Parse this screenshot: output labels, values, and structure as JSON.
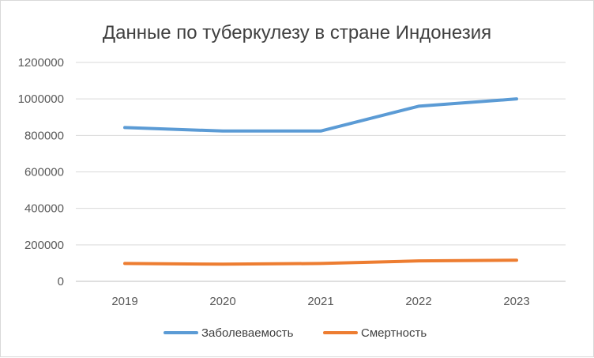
{
  "chart_data": {
    "type": "line",
    "title": "Данные по туберкулезу  в стране Индонезия",
    "xlabel": "",
    "ylabel": "",
    "categories": [
      "2019",
      "2020",
      "2021",
      "2022",
      "2023"
    ],
    "ylim": [
      0,
      1200000
    ],
    "yticks": [
      "0",
      "200000",
      "400000",
      "600000",
      "800000",
      "1000000",
      "1200000"
    ],
    "grid": true,
    "legend_position": "bottom",
    "series": [
      {
        "name": "Заболеваемость",
        "color": "#5b9bd5",
        "values": [
          843000,
          824000,
          824000,
          960000,
          1000000
        ]
      },
      {
        "name": "Смертность",
        "color": "#ed7d31",
        "values": [
          98000,
          94000,
          98000,
          112000,
          116000
        ]
      }
    ]
  }
}
